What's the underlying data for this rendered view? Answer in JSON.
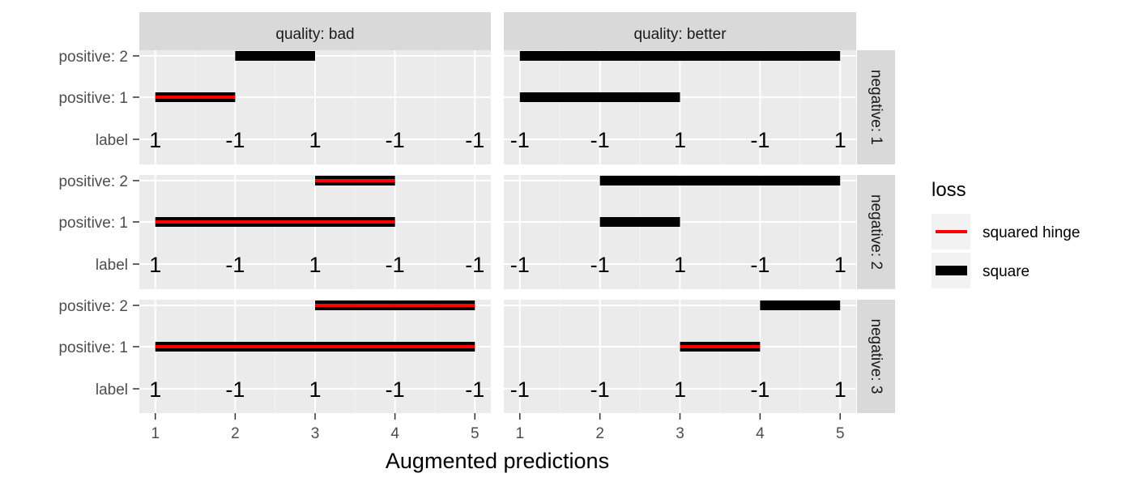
{
  "chart_data": {
    "type": "segment",
    "xlabel": "Augmented predictions",
    "x_ticks": [
      1,
      2,
      3,
      4,
      5
    ],
    "xlim": [
      0.8,
      5.2
    ],
    "y_levels": [
      "label",
      "positive: 1",
      "positive: 2"
    ],
    "col_facets": [
      "quality: bad",
      "quality: better"
    ],
    "row_facets": [
      "negative: 1",
      "negative: 2",
      "negative: 3"
    ],
    "legend": {
      "title": "loss",
      "items": [
        {
          "name": "squared hinge",
          "color": "#ff0000"
        },
        {
          "name": "square",
          "color": "#000000"
        }
      ]
    },
    "panels": [
      {
        "col": "quality: bad",
        "row": "negative: 1",
        "labels": [
          "1",
          "-1",
          "1",
          "-1",
          "-1"
        ],
        "segments": [
          {
            "y": "positive: 2",
            "x_start": 2,
            "x_end": 3,
            "loss": "square"
          },
          {
            "y": "positive: 1",
            "x_start": 1,
            "x_end": 2,
            "loss": "square"
          },
          {
            "y": "positive: 1",
            "x_start": 1,
            "x_end": 2,
            "loss": "squared hinge"
          }
        ]
      },
      {
        "col": "quality: better",
        "row": "negative: 1",
        "labels": [
          "-1",
          "-1",
          "1",
          "-1",
          "1"
        ],
        "segments": [
          {
            "y": "positive: 2",
            "x_start": 1,
            "x_end": 5,
            "loss": "square"
          },
          {
            "y": "positive: 1",
            "x_start": 1,
            "x_end": 3,
            "loss": "square"
          }
        ]
      },
      {
        "col": "quality: bad",
        "row": "negative: 2",
        "labels": [
          "1",
          "-1",
          "1",
          "-1",
          "-1"
        ],
        "segments": [
          {
            "y": "positive: 2",
            "x_start": 3,
            "x_end": 4,
            "loss": "square"
          },
          {
            "y": "positive: 2",
            "x_start": 3,
            "x_end": 4,
            "loss": "squared hinge"
          },
          {
            "y": "positive: 1",
            "x_start": 1,
            "x_end": 4,
            "loss": "square"
          },
          {
            "y": "positive: 1",
            "x_start": 1,
            "x_end": 4,
            "loss": "squared hinge"
          }
        ]
      },
      {
        "col": "quality: better",
        "row": "negative: 2",
        "labels": [
          "-1",
          "-1",
          "1",
          "-1",
          "1"
        ],
        "segments": [
          {
            "y": "positive: 2",
            "x_start": 2,
            "x_end": 5,
            "loss": "square"
          },
          {
            "y": "positive: 1",
            "x_start": 2,
            "x_end": 3,
            "loss": "square"
          }
        ]
      },
      {
        "col": "quality: bad",
        "row": "negative: 3",
        "labels": [
          "1",
          "-1",
          "1",
          "-1",
          "-1"
        ],
        "segments": [
          {
            "y": "positive: 2",
            "x_start": 3,
            "x_end": 5,
            "loss": "square"
          },
          {
            "y": "positive: 2",
            "x_start": 3,
            "x_end": 5,
            "loss": "squared hinge"
          },
          {
            "y": "positive: 1",
            "x_start": 1,
            "x_end": 5,
            "loss": "square"
          },
          {
            "y": "positive: 1",
            "x_start": 1,
            "x_end": 5,
            "loss": "squared hinge"
          }
        ]
      },
      {
        "col": "quality: better",
        "row": "negative: 3",
        "labels": [
          "-1",
          "-1",
          "1",
          "-1",
          "1"
        ],
        "segments": [
          {
            "y": "positive: 2",
            "x_start": 4,
            "x_end": 5,
            "loss": "square"
          },
          {
            "y": "positive: 1",
            "x_start": 3,
            "x_end": 4,
            "loss": "square"
          },
          {
            "y": "positive: 1",
            "x_start": 3,
            "x_end": 4,
            "loss": "squared hinge"
          }
        ]
      }
    ]
  }
}
